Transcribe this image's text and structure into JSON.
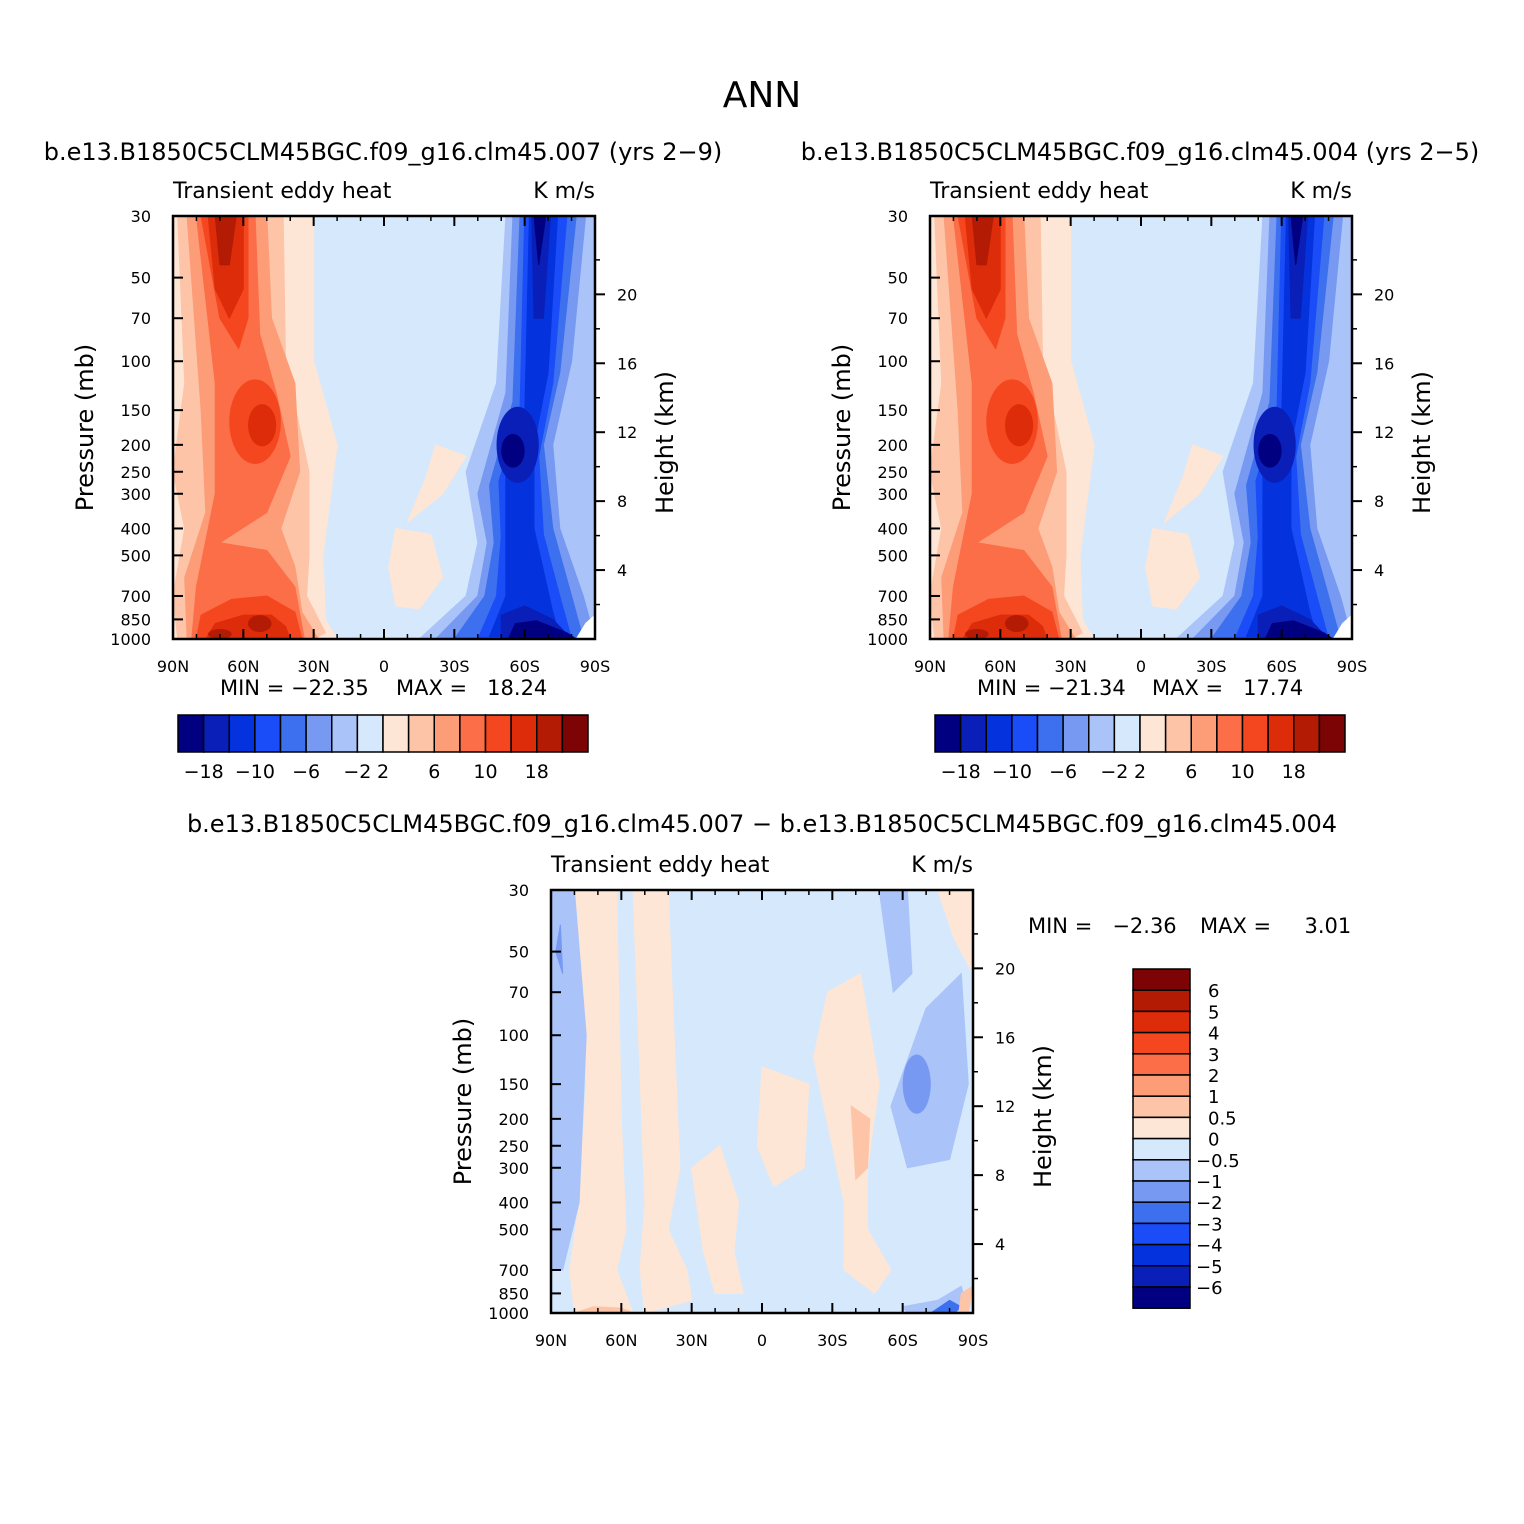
{
  "figure_title": "ANN",
  "colors": {
    "blues": [
      "#000080",
      "#0a1fb8",
      "#0433dd",
      "#1a4cf8",
      "#3d70ee",
      "#7799f2",
      "#aac4fa",
      "#d6e8fc"
    ],
    "reds": [
      "#fde6d6",
      "#fdc4a8",
      "#fc9d78",
      "#fb6e48",
      "#f5471f",
      "#dd2c0a",
      "#b31b04",
      "#7c0404"
    ]
  },
  "chart_data": [
    {
      "type": "contour",
      "id": "panel-1",
      "title": "b.e13.B1850C5CLM45BGC.f09_g16.clm45.007 (yrs 2−9)",
      "left_label": "Transient eddy heat",
      "right_label": "K m/s",
      "ylabel": "Pressure (mb)",
      "ylabel_right": "Height (km)",
      "x_ticks": [
        "90N",
        "60N",
        "30N",
        "0",
        "30S",
        "60S",
        "90S"
      ],
      "x_values": [
        90,
        60,
        30,
        0,
        -30,
        -60,
        -90
      ],
      "y_ticks": [
        "30",
        "50",
        "70",
        "100",
        "150",
        "200",
        "250",
        "300",
        "400",
        "500",
        "700",
        "850",
        "1000"
      ],
      "y_values": [
        30,
        50,
        70,
        100,
        150,
        200,
        250,
        300,
        400,
        500,
        700,
        850,
        1000
      ],
      "height_ticks": [
        "20",
        "16",
        "12",
        "8",
        "4"
      ],
      "height_values": [
        20,
        16,
        12,
        8,
        4
      ],
      "ylim": [
        1000,
        30
      ],
      "xlim": [
        90,
        -90
      ],
      "min_label": "MIN = −22.35",
      "max_label": "MAX =   18.24",
      "min": -22.35,
      "max": 18.24,
      "levels": [
        -18,
        -14,
        -10,
        -8,
        -6,
        -4,
        -2,
        0,
        2,
        4,
        6,
        8,
        10,
        14,
        18
      ],
      "colorbar_labels": [
        "−18",
        "−10",
        "−6",
        "−2",
        "2",
        "6",
        "10",
        "18"
      ],
      "features": [
        {
          "kind": "red",
          "lat": 60,
          "p": 30,
          "value": 18
        },
        {
          "kind": "red",
          "lat": 50,
          "p": 175,
          "value": 14
        },
        {
          "kind": "red",
          "lat": 52,
          "p": 930,
          "value": 18
        },
        {
          "kind": "blue",
          "lat": -62,
          "p": 30,
          "value": -18
        },
        {
          "kind": "blue",
          "lat": -53,
          "p": 190,
          "value": -18
        },
        {
          "kind": "blue",
          "lat": -58,
          "p": 930,
          "value": -22
        }
      ]
    },
    {
      "type": "contour",
      "id": "panel-2",
      "title": "b.e13.B1850C5CLM45BGC.f09_g16.clm45.004 (yrs 2−5)",
      "left_label": "Transient eddy heat",
      "right_label": "K m/s",
      "ylabel": "Pressure (mb)",
      "ylabel_right": "Height (km)",
      "x_ticks": [
        "90N",
        "60N",
        "30N",
        "0",
        "30S",
        "60S",
        "90S"
      ],
      "x_values": [
        90,
        60,
        30,
        0,
        -30,
        -60,
        -90
      ],
      "y_ticks": [
        "30",
        "50",
        "70",
        "100",
        "150",
        "200",
        "250",
        "300",
        "400",
        "500",
        "700",
        "850",
        "1000"
      ],
      "y_values": [
        30,
        50,
        70,
        100,
        150,
        200,
        250,
        300,
        400,
        500,
        700,
        850,
        1000
      ],
      "height_ticks": [
        "20",
        "16",
        "12",
        "8",
        "4"
      ],
      "height_values": [
        20,
        16,
        12,
        8,
        4
      ],
      "ylim": [
        1000,
        30
      ],
      "xlim": [
        90,
        -90
      ],
      "min_label": "MIN = −21.34",
      "max_label": "MAX =   17.74",
      "min": -21.34,
      "max": 17.74,
      "levels": [
        -18,
        -14,
        -10,
        -8,
        -6,
        -4,
        -2,
        0,
        2,
        4,
        6,
        8,
        10,
        14,
        18
      ],
      "colorbar_labels": [
        "−18",
        "−10",
        "−6",
        "−2",
        "2",
        "6",
        "10",
        "18"
      ]
    },
    {
      "type": "contour",
      "id": "panel-diff",
      "title": "b.e13.B1850C5CLM45BGC.f09_g16.clm45.007 − b.e13.B1850C5CLM45BGC.f09_g16.clm45.004",
      "left_label": "Transient eddy heat",
      "right_label": "K m/s",
      "ylabel": "Pressure (mb)",
      "ylabel_right": "Height (km)",
      "x_ticks": [
        "90N",
        "60N",
        "30N",
        "0",
        "30S",
        "60S",
        "90S"
      ],
      "x_values": [
        90,
        60,
        30,
        0,
        -30,
        -60,
        -90
      ],
      "y_ticks": [
        "30",
        "50",
        "70",
        "100",
        "150",
        "200",
        "250",
        "300",
        "400",
        "500",
        "700",
        "850",
        "1000"
      ],
      "y_values": [
        30,
        50,
        70,
        100,
        150,
        200,
        250,
        300,
        400,
        500,
        700,
        850,
        1000
      ],
      "height_ticks": [
        "20",
        "16",
        "12",
        "8",
        "4"
      ],
      "height_values": [
        20,
        16,
        12,
        8,
        4
      ],
      "ylim": [
        1000,
        30
      ],
      "xlim": [
        90,
        -90
      ],
      "min_label": "MIN =   −2.36",
      "max_label": "MAX =     3.01",
      "min": -2.36,
      "max": 3.01,
      "levels": [
        -6,
        -5,
        -4,
        -3,
        -2,
        -1,
        -0.5,
        0,
        0.5,
        1,
        2,
        3,
        4,
        5,
        6
      ],
      "colorbar_labels": [
        "6",
        "5",
        "4",
        "3",
        "2",
        "1",
        "0.5",
        "0",
        "−0.5",
        "−1",
        "−2",
        "−3",
        "−4",
        "−5",
        "−6"
      ]
    }
  ]
}
